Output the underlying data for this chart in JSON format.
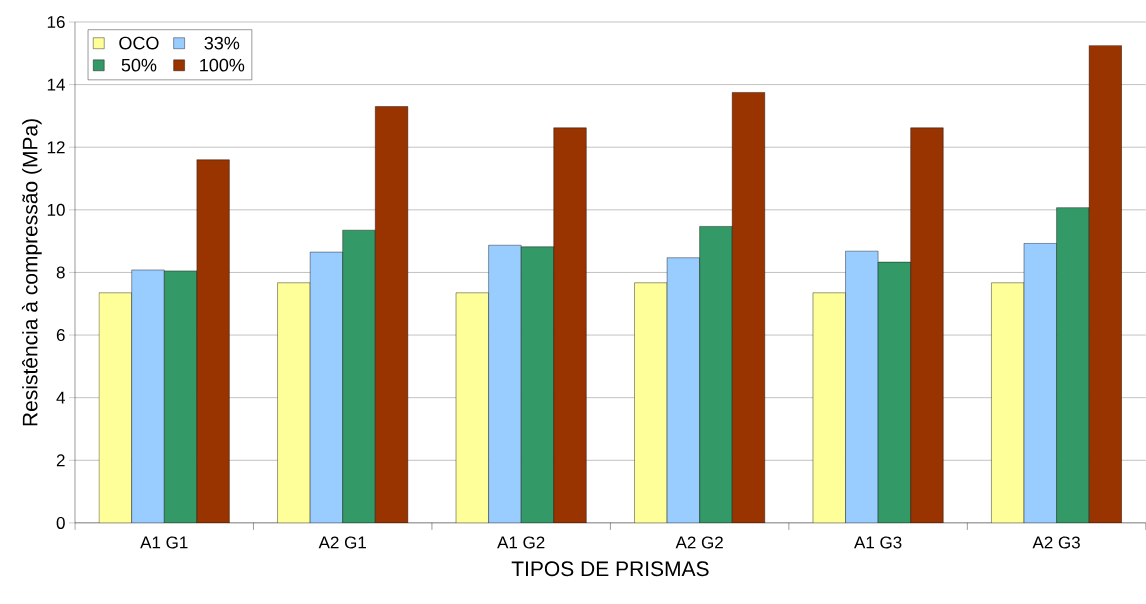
{
  "chart_data": {
    "type": "bar",
    "xlabel": "TIPOS DE PRISMAS",
    "ylabel": "Resistência à compressão (MPa)",
    "categories": [
      "A1 G1",
      "A2 G1",
      "A1 G2",
      "A2 G2",
      "A1 G3",
      "A2 G3"
    ],
    "series": [
      {
        "name": "OCO",
        "color": "#ffff99",
        "values": [
          7.35,
          7.67,
          7.35,
          7.67,
          7.35,
          7.67
        ]
      },
      {
        "name": "33%",
        "color": "#99ccff",
        "values": [
          8.08,
          8.65,
          8.87,
          8.47,
          8.68,
          8.93
        ]
      },
      {
        "name": "50%",
        "color": "#339966",
        "values": [
          8.05,
          9.35,
          8.82,
          9.47,
          8.33,
          10.07
        ]
      },
      {
        "name": "100%",
        "color": "#993300",
        "values": [
          11.6,
          13.3,
          12.62,
          13.75,
          12.62,
          15.25
        ]
      }
    ],
    "ylim": [
      0,
      16
    ],
    "yticks": [
      0,
      2,
      4,
      6,
      8,
      10,
      12,
      14,
      16
    ],
    "grid": "y",
    "legend": "top left"
  }
}
